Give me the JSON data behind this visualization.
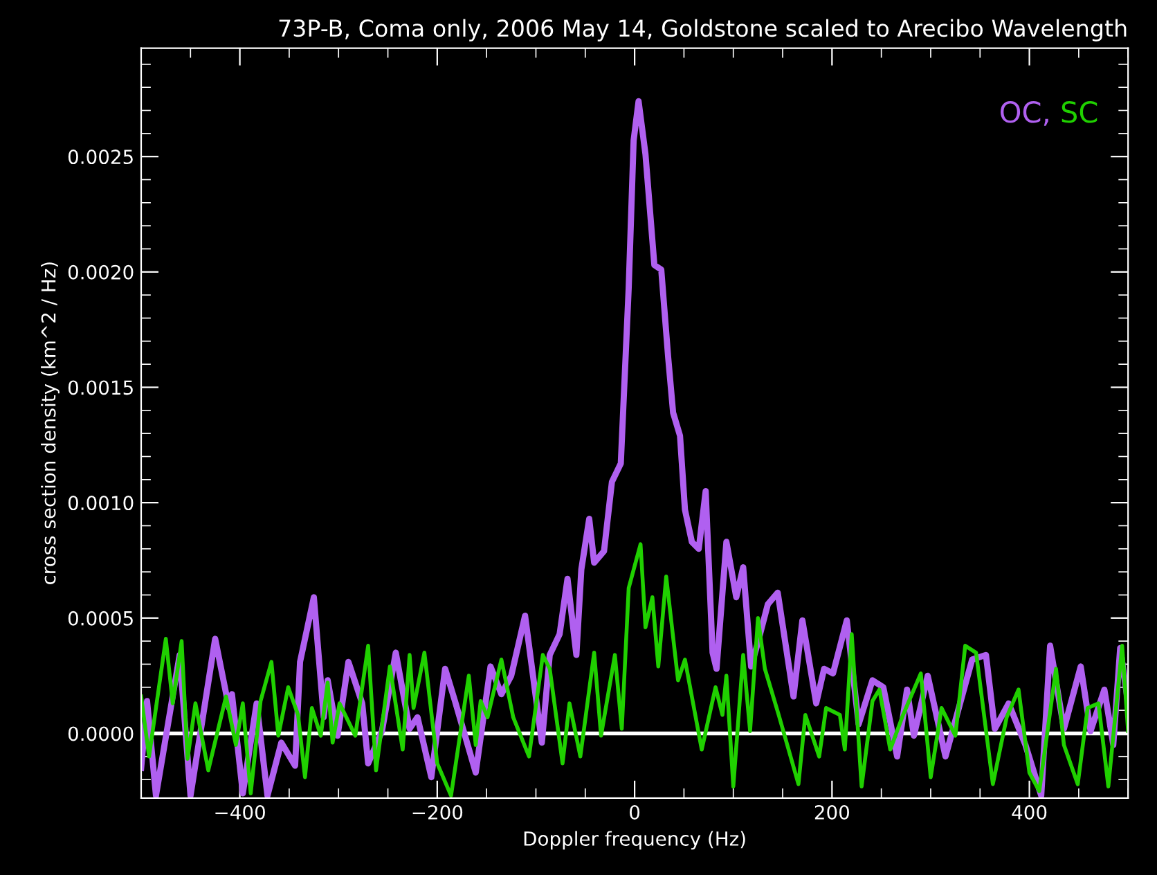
{
  "chart_data": {
    "type": "line",
    "title": "73P-B, Coma only, 2006 May 14, Goldstone scaled to Arecibo Wavelength",
    "xlabel": "Doppler frequency (Hz)",
    "ylabel": "cross section density (km^2 / Hz)",
    "xlim": [
      -500,
      500
    ],
    "xticks": [
      {
        "value": -400,
        "label": "−400"
      },
      {
        "value": -200,
        "label": "−200"
      },
      0,
      200,
      400
    ],
    "ylim": [
      -0.00028,
      0.00297
    ],
    "yticks": [
      {
        "value": 0,
        "label": "0.0000"
      },
      {
        "value": 0.0005,
        "label": "0.0005"
      },
      {
        "value": 0.001,
        "label": "0.0010"
      },
      {
        "value": 0.0015,
        "label": "0.0015"
      },
      {
        "value": 0.002,
        "label": "0.0020"
      },
      {
        "value": 0.0025,
        "label": "0.0025"
      }
    ],
    "grid": false,
    "legend": "top right",
    "marker": "none",
    "line_style": "solid",
    "ref_lines": [
      {
        "axis": "y",
        "value": 0,
        "label": null,
        "color": "#ffffff",
        "line_style": "solid"
      }
    ],
    "series": [
      {
        "name": "OC,",
        "color": "#b060f0",
        "x": [
          -500,
          -494,
          -485,
          -461,
          -450,
          -425,
          -411,
          -408,
          -397,
          -383,
          -372,
          -358,
          -344,
          -339,
          -325,
          -315,
          -311,
          -301,
          -290,
          -276,
          -270,
          -256,
          -242,
          -228,
          -220,
          -206,
          -192,
          -182,
          -161,
          -146,
          -135,
          -125,
          -111,
          -94,
          -86,
          -76,
          -68,
          -59,
          -54,
          -46,
          -41,
          -31,
          -23,
          -14,
          -6,
          -1,
          4,
          11,
          20,
          27,
          34,
          39,
          46,
          51,
          58,
          65,
          72,
          79,
          83,
          93,
          103,
          110,
          118,
          124,
          135,
          145,
          161,
          170,
          184,
          192,
          201,
          215,
          227,
          241,
          252,
          266,
          276,
          283,
          297,
          315,
          342,
          356,
          365,
          379,
          396,
          412,
          421,
          435,
          452,
          462,
          476,
          485,
          492,
          500
        ],
        "values": [
          -0.00015,
          0.00014,
          -0.00027,
          0.00034,
          -0.00027,
          0.00041,
          0.00011,
          0.00017,
          -0.00026,
          0.00013,
          -0.00027,
          -4e-05,
          -0.00014,
          0.00031,
          0.00059,
          7e-05,
          0.00023,
          -1e-05,
          0.00031,
          0.00013,
          -0.00013,
          1e-05,
          0.00035,
          2e-05,
          7e-05,
          -0.00019,
          0.00028,
          0.00014,
          -0.00017,
          0.00029,
          0.00017,
          0.00025,
          0.00051,
          -4e-05,
          0.00034,
          0.00043,
          0.00067,
          0.00034,
          0.00071,
          0.00093,
          0.00074,
          0.00079,
          0.00109,
          0.00117,
          0.00193,
          0.00257,
          0.00274,
          0.00251,
          0.00203,
          0.00201,
          0.00163,
          0.00139,
          0.00129,
          0.00097,
          0.00083,
          0.0008,
          0.00105,
          0.00035,
          0.00028,
          0.00083,
          0.00059,
          0.00072,
          0.00029,
          0.00038,
          0.00056,
          0.00061,
          0.00016,
          0.00049,
          0.00013,
          0.00028,
          0.00026,
          0.00049,
          4e-05,
          0.00023,
          0.0002,
          -0.0001,
          0.00019,
          -1e-05,
          0.00025,
          -0.0001,
          0.00032,
          0.00034,
          2e-05,
          0.00013,
          -5e-05,
          -0.00027,
          0.00038,
          2e-05,
          0.00029,
          1e-05,
          0.00019,
          -5e-05,
          0.00037,
          0.00013
        ]
      },
      {
        "name": "SC",
        "color": "#20d000",
        "x": [
          -500,
          -492,
          -475,
          -468,
          -459,
          -453,
          -445,
          -432,
          -414,
          -404,
          -397,
          -389,
          -379,
          -368,
          -361,
          -351,
          -341,
          -334,
          -327,
          -318,
          -311,
          -306,
          -299,
          -283,
          -270,
          -262,
          -248,
          -235,
          -228,
          -224,
          -213,
          -200,
          -186,
          -168,
          -161,
          -156,
          -149,
          -135,
          -123,
          -107,
          -93,
          -86,
          -73,
          -66,
          -55,
          -41,
          -34,
          -20,
          -13,
          -6,
          6,
          11,
          18,
          24,
          32,
          44,
          51,
          68,
          82,
          89,
          93,
          100,
          110,
          117,
          125,
          132,
          146,
          166,
          173,
          187,
          194,
          208,
          213,
          220,
          230,
          241,
          248,
          259,
          272,
          290,
          300,
          311,
          325,
          335,
          346,
          363,
          377,
          389,
          400,
          410,
          427,
          435,
          449,
          459,
          470,
          480,
          494,
          500
        ],
        "values": [
          0.00016,
          -0.0001,
          0.00041,
          0.00013,
          0.0004,
          -0.00011,
          0.00013,
          -0.00016,
          0.00016,
          -5e-05,
          0.00013,
          -0.00026,
          0.00014,
          0.00031,
          -1e-05,
          0.0002,
          8e-05,
          -0.00019,
          0.00011,
          -1e-05,
          0.00022,
          -4e-05,
          0.00013,
          -1e-05,
          0.00038,
          -0.00016,
          0.00029,
          -7e-05,
          0.00034,
          0.00011,
          0.00035,
          -0.00013,
          -0.00027,
          0.00025,
          -5e-05,
          0.00014,
          7e-05,
          0.00032,
          7e-05,
          -0.0001,
          0.00034,
          0.00028,
          -0.00013,
          0.00013,
          -0.0001,
          0.00035,
          -1e-05,
          0.00034,
          2e-05,
          0.00063,
          0.00082,
          0.00046,
          0.00059,
          0.00029,
          0.00068,
          0.00023,
          0.00032,
          -7e-05,
          0.0002,
          8e-05,
          0.00025,
          -0.00023,
          0.00034,
          1e-05,
          0.0005,
          0.00028,
          8e-05,
          -0.00022,
          8e-05,
          -0.0001,
          0.00011,
          8e-05,
          -7e-05,
          0.00043,
          -0.00023,
          0.00014,
          0.00019,
          -7e-05,
          8e-05,
          0.00026,
          -0.00019,
          0.00011,
          -1e-05,
          0.00038,
          0.00035,
          -0.00022,
          7e-05,
          0.00019,
          -0.00017,
          -0.00025,
          0.00028,
          -5e-05,
          -0.00022,
          0.00011,
          0.00013,
          -0.00023,
          0.00038,
          1e-05
        ]
      }
    ]
  }
}
